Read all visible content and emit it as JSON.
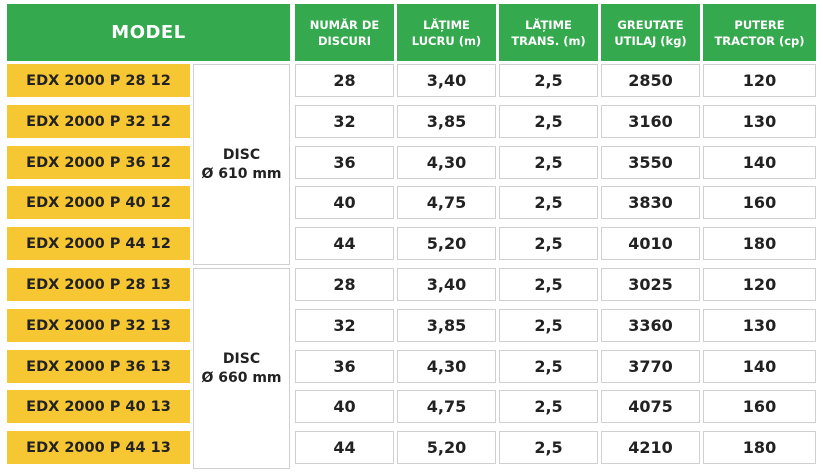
{
  "header": {
    "model": "MODEL",
    "discs": "NUMĂR DE\nDISCURI",
    "work_width": "LĂȚIME\nLUCRU (m)",
    "transport_width": "LĂȚIME\nTRANS. (m)",
    "weight": "GREUTATE\nUTILAJ (kg)",
    "power": "PUTERE\nTRACTOR (cp)"
  },
  "groups": [
    {
      "label_line1": "DISC",
      "label_line2": "Ø 610 mm"
    },
    {
      "label_line1": "DISC",
      "label_line2": "Ø 660 mm"
    }
  ],
  "rows": [
    {
      "model": "EDX 2000 P 28 12",
      "discs": "28",
      "work_width": "3,40",
      "transport_width": "2,5",
      "weight": "2850",
      "power": "120"
    },
    {
      "model": "EDX 2000 P 32 12",
      "discs": "32",
      "work_width": "3,85",
      "transport_width": "2,5",
      "weight": "3160",
      "power": "130"
    },
    {
      "model": "EDX 2000 P 36 12",
      "discs": "36",
      "work_width": "4,30",
      "transport_width": "2,5",
      "weight": "3550",
      "power": "140"
    },
    {
      "model": "EDX 2000 P 40 12",
      "discs": "40",
      "work_width": "4,75",
      "transport_width": "2,5",
      "weight": "3830",
      "power": "160"
    },
    {
      "model": "EDX 2000 P 44 12",
      "discs": "44",
      "work_width": "5,20",
      "transport_width": "2,5",
      "weight": "4010",
      "power": "180"
    },
    {
      "model": "EDX 2000 P 28 13",
      "discs": "28",
      "work_width": "3,40",
      "transport_width": "2,5",
      "weight": "3025",
      "power": "120"
    },
    {
      "model": "EDX 2000 P 32 13",
      "discs": "32",
      "work_width": "3,85",
      "transport_width": "2,5",
      "weight": "3360",
      "power": "130"
    },
    {
      "model": "EDX 2000 P 36 13",
      "discs": "36",
      "work_width": "4,30",
      "transport_width": "2,5",
      "weight": "3770",
      "power": "140"
    },
    {
      "model": "EDX 2000 P 40 13",
      "discs": "40",
      "work_width": "4,75",
      "transport_width": "2,5",
      "weight": "4075",
      "power": "160"
    },
    {
      "model": "EDX 2000 P 44 13",
      "discs": "44",
      "work_width": "5,20",
      "transport_width": "2,5",
      "weight": "4210",
      "power": "180"
    }
  ],
  "colors": {
    "header_bg": "#35a94e",
    "model_bg": "#f7c733",
    "cell_bg": "#ffffff"
  }
}
